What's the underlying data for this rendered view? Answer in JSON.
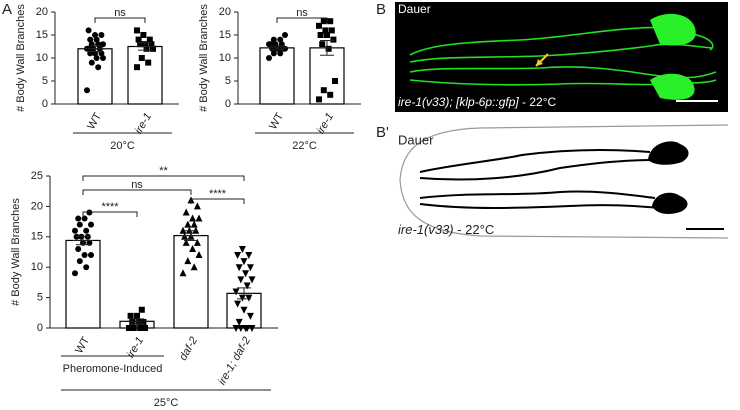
{
  "panel_labels": [
    "A",
    "B",
    "B'"
  ],
  "images": [
    {
      "label": "Dauer",
      "caption_italic": "ire-1(v33); [klp-6p::gfp]",
      "caption_rest": " - 22°C"
    },
    {
      "label": "Dauer",
      "caption_italic": "ire-1(v33)",
      "caption_rest": " - 22°C"
    }
  ],
  "chart_data": [
    {
      "type": "bar",
      "y_label": "# Body Wall Branches",
      "categories": [
        "WT",
        "ire-1"
      ],
      "category_style": [
        "normal",
        "italic"
      ],
      "values": [
        12,
        12.5
      ],
      "errors": [
        0.6,
        0.8
      ],
      "markers": [
        "circle",
        "square"
      ],
      "points": [
        [
          3,
          8,
          9,
          10,
          10,
          11,
          11,
          11,
          12,
          12,
          12,
          12,
          13,
          13,
          13,
          14,
          14,
          15,
          15,
          16
        ],
        [
          8,
          9,
          10,
          12,
          12,
          13,
          13,
          13,
          14,
          14,
          15,
          16
        ]
      ],
      "ylim": [
        0,
        20
      ],
      "yticks": [
        0,
        5,
        10,
        15,
        20
      ],
      "comparisons": [
        {
          "label": "ns",
          "pair": [
            "WT",
            "ire-1"
          ]
        }
      ],
      "groups": [
        {
          "label": "20°C",
          "categories": [
            "WT",
            "ire-1"
          ]
        }
      ]
    },
    {
      "type": "bar",
      "y_label": "# Body Wall Branches",
      "categories": [
        "WT",
        "ire-1"
      ],
      "category_style": [
        "normal",
        "italic"
      ],
      "values": [
        12.2,
        12.2
      ],
      "errors": [
        0.4,
        1.6
      ],
      "markers": [
        "circle",
        "square"
      ],
      "points": [
        [
          10,
          11,
          11,
          12,
          12,
          12,
          12,
          12,
          13,
          13,
          13,
          13,
          14,
          14,
          15
        ],
        [
          1,
          2,
          3,
          5,
          12,
          13,
          14,
          15,
          15,
          16,
          16,
          17,
          18,
          18
        ]
      ],
      "ylim": [
        0,
        20
      ],
      "yticks": [
        0,
        5,
        10,
        15,
        20
      ],
      "comparisons": [
        {
          "label": "ns",
          "pair": [
            "WT",
            "ire-1"
          ]
        }
      ],
      "groups": [
        {
          "label": "22°C",
          "categories": [
            "WT",
            "ire-1"
          ]
        }
      ]
    },
    {
      "type": "bar",
      "y_label": "# Body Wall Branches",
      "categories": [
        "WT",
        "ire-1",
        "daf-2",
        "ire-1; daf-2"
      ],
      "category_style": [
        "normal",
        "italic",
        "italic",
        "italic"
      ],
      "values": [
        14.4,
        1.1,
        15.2,
        5.7
      ],
      "errors": [
        0.7,
        0.4,
        0.8,
        0.9
      ],
      "markers": [
        "circle",
        "square",
        "triangle",
        "triangle-down"
      ],
      "points": [
        [
          9,
          10,
          11,
          12,
          12,
          13,
          14,
          14,
          15,
          15,
          15,
          16,
          16,
          17,
          17,
          18,
          18,
          19
        ],
        [
          0,
          0,
          0,
          0,
          1,
          1,
          1,
          2,
          2,
          3
        ],
        [
          9,
          10,
          11,
          12,
          13,
          14,
          14,
          15,
          15,
          16,
          16,
          16,
          17,
          17,
          18,
          18,
          19,
          20,
          21
        ],
        [
          0,
          0,
          0,
          0,
          0,
          1,
          2,
          3,
          4,
          5,
          5,
          6,
          7,
          8,
          8,
          9,
          10,
          10,
          11,
          12,
          12,
          13
        ]
      ],
      "ylim": [
        0,
        25
      ],
      "yticks": [
        0,
        5,
        10,
        15,
        20,
        25
      ],
      "comparisons": [
        {
          "label": "****",
          "pair": [
            "WT",
            "ire-1"
          ]
        },
        {
          "label": "ns",
          "pair": [
            "WT",
            "daf-2"
          ]
        },
        {
          "label": "****",
          "pair": [
            "daf-2",
            "ire-1; daf-2"
          ]
        },
        {
          "label": "**",
          "pair": [
            "WT",
            "ire-1; daf-2"
          ]
        }
      ],
      "groups": [
        {
          "label": "Pheromone-Induced",
          "categories": [
            "WT",
            "ire-1"
          ]
        },
        {
          "label": "25°C",
          "categories": [
            "WT",
            "ire-1",
            "daf-2",
            "ire-1; daf-2"
          ]
        }
      ]
    }
  ]
}
